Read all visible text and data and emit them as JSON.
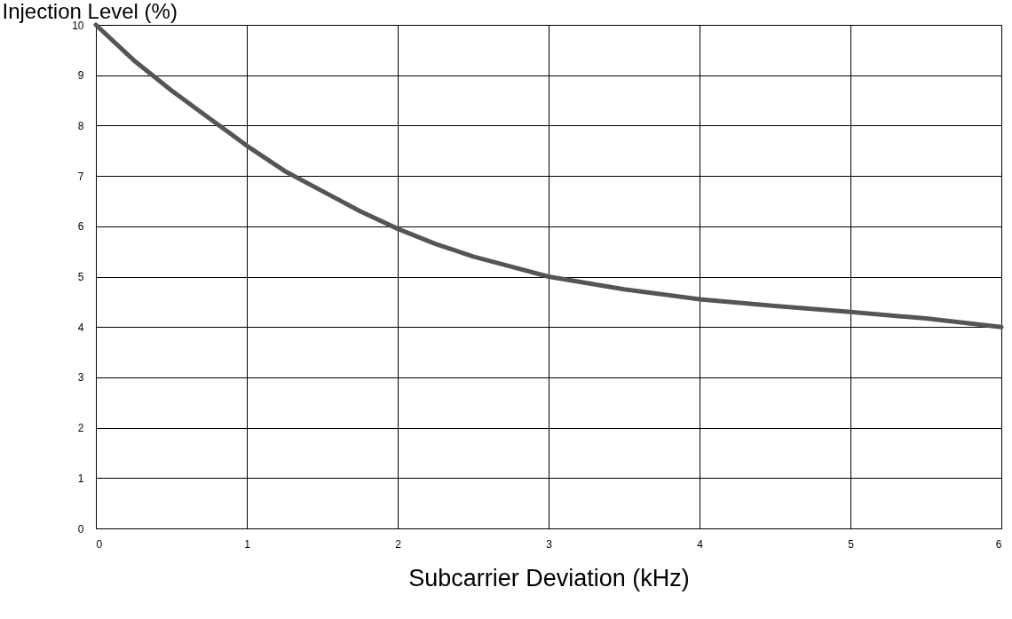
{
  "chart_data": {
    "type": "line",
    "xlabel": "Subcarrier Deviation (kHz)",
    "ylabel": "Injection Level (%)",
    "x": [
      0,
      0.25,
      0.5,
      0.75,
      1,
      1.25,
      1.5,
      1.75,
      2,
      2.25,
      2.5,
      2.75,
      3,
      3.5,
      4,
      4.5,
      5,
      5.5,
      6
    ],
    "series": [
      {
        "color": "#555555",
        "values": [
          10,
          9.3,
          8.7,
          8.15,
          7.6,
          7.1,
          6.7,
          6.3,
          5.95,
          5.65,
          5.4,
          5.2,
          5.0,
          4.75,
          4.55,
          4.42,
          4.3,
          4.17,
          4.0
        ]
      }
    ],
    "xlim": [
      0,
      6
    ],
    "xticks": [
      0,
      1,
      2,
      3,
      4,
      5,
      6
    ],
    "ylim": [
      0,
      10
    ],
    "yticks": [
      0,
      1,
      2,
      3,
      4,
      5,
      6,
      7,
      8,
      9,
      10
    ],
    "grid": true,
    "marker": "none",
    "line_style": "solid"
  }
}
